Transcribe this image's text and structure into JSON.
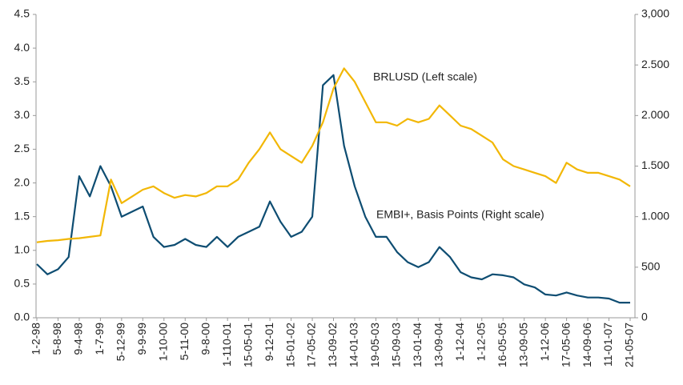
{
  "chart_data": {
    "type": "line",
    "categories": [
      "1-2-98",
      null,
      "5-8-98",
      null,
      "9-4-98",
      null,
      "1-7-99",
      null,
      "5-12-99",
      null,
      "9-9-99",
      null,
      "1-10-00",
      null,
      "5-11-00",
      null,
      "9-8-00",
      null,
      "1-110-01",
      null,
      "15-05-01",
      null,
      "9-12-01",
      null,
      "15-01-02",
      null,
      "17-05-02",
      null,
      "13-09-02",
      null,
      "14-01-03",
      null,
      "19-05-03",
      null,
      "15-09-03",
      null,
      "13-01-04",
      null,
      "13-09-04",
      null,
      "1-12-04",
      null,
      "1-12-05",
      null,
      "16-05-05",
      null,
      "13-09-05",
      null,
      "1-12-06",
      null,
      "17-05-06",
      null,
      "14-09-06",
      null,
      "11-01-07",
      null,
      "21-05-07"
    ],
    "series": [
      {
        "name": "BRLUSD (Left scale)",
        "color": "#f2b705",
        "axis": "y",
        "values": [
          1.12,
          1.14,
          1.15,
          1.17,
          1.18,
          1.2,
          1.22,
          2.05,
          1.7,
          1.8,
          1.9,
          1.95,
          1.85,
          1.78,
          1.82,
          1.8,
          1.85,
          1.95,
          1.95,
          2.05,
          2.3,
          2.5,
          2.75,
          2.5,
          2.4,
          2.3,
          2.55,
          2.9,
          3.4,
          3.7,
          3.5,
          3.2,
          2.9,
          2.9,
          2.85,
          2.95,
          2.9,
          2.95,
          3.15,
          3.0,
          2.85,
          2.8,
          2.7,
          2.6,
          2.35,
          2.25,
          2.2,
          2.15,
          2.1,
          2.0,
          2.3,
          2.2,
          2.15,
          2.15,
          2.1,
          2.05,
          1.95
        ]
      },
      {
        "name": "EMBI+, Basis Points (Right scale)",
        "color": "#0e4d72",
        "axis": "y2",
        "values": [
          530,
          430,
          480,
          600,
          1400,
          1200,
          1500,
          1300,
          1000,
          1050,
          1100,
          800,
          700,
          720,
          780,
          720,
          700,
          800,
          700,
          800,
          850,
          900,
          1150,
          950,
          800,
          850,
          1000,
          2300,
          2400,
          1700,
          1300,
          1000,
          800,
          800,
          650,
          550,
          500,
          550,
          700,
          600,
          450,
          400,
          380,
          430,
          420,
          400,
          330,
          300,
          230,
          220,
          250,
          220,
          200,
          200,
          190,
          150,
          150
        ]
      }
    ],
    "ylim": [
      0,
      4.5
    ],
    "yticks": [
      {
        "value": 0,
        "label": "0.0"
      },
      0.5,
      {
        "value": 1,
        "label": "1.0"
      },
      1.5,
      {
        "value": 2,
        "label": "2.0"
      },
      2.5,
      {
        "value": 3,
        "label": "3.0"
      },
      3.5,
      {
        "value": 4,
        "label": "4.0"
      },
      4.5
    ],
    "y2lim": [
      0,
      3000
    ],
    "y2ticks": [
      0,
      500,
      {
        "value": 1000,
        "label": "1.000"
      },
      {
        "value": 1500,
        "label": "1.500"
      },
      {
        "value": 2000,
        "label": "2.000"
      },
      {
        "value": 2500,
        "label": "2.500"
      },
      {
        "value": 3000,
        "label": "3,000"
      }
    ],
    "grid": false
  }
}
